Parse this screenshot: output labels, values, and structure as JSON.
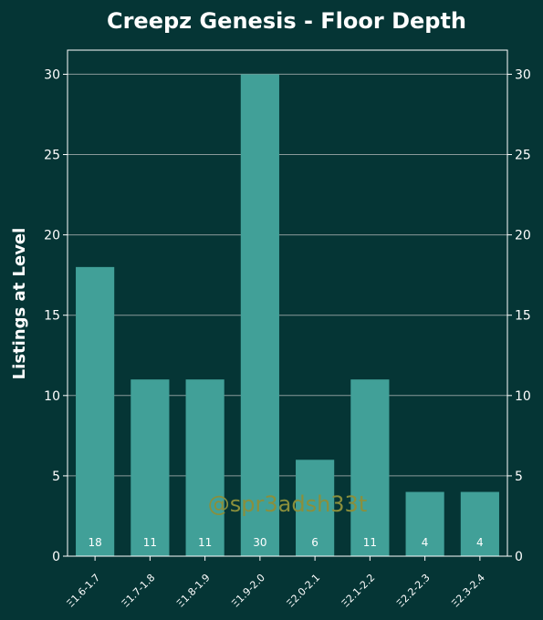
{
  "chart_data": {
    "type": "bar",
    "title": "Creepz Genesis - Floor Depth",
    "ylabel": "Listings at Level",
    "xlabel": "",
    "categories": [
      "Ξ1.6-1.7",
      "Ξ1.7-1.8",
      "Ξ1.8-1.9",
      "Ξ1.9-2.0",
      "Ξ2.0-2.1",
      "Ξ2.1-2.2",
      "Ξ2.2-2.3",
      "Ξ2.3-2.4"
    ],
    "values": [
      18,
      11,
      11,
      30,
      6,
      11,
      4,
      4
    ],
    "ylim": [
      0,
      31.5
    ],
    "yticks": [
      0,
      5,
      10,
      15,
      20,
      25,
      30
    ],
    "grid": "horizontal",
    "right_axis_mirror": true,
    "watermark": "@spr3adsh33t",
    "colors": {
      "background": "#053535",
      "bar": "#41a098",
      "grid": "#8a9a9a",
      "axes": "#ffffff",
      "watermark": "#8a8f3c"
    }
  }
}
